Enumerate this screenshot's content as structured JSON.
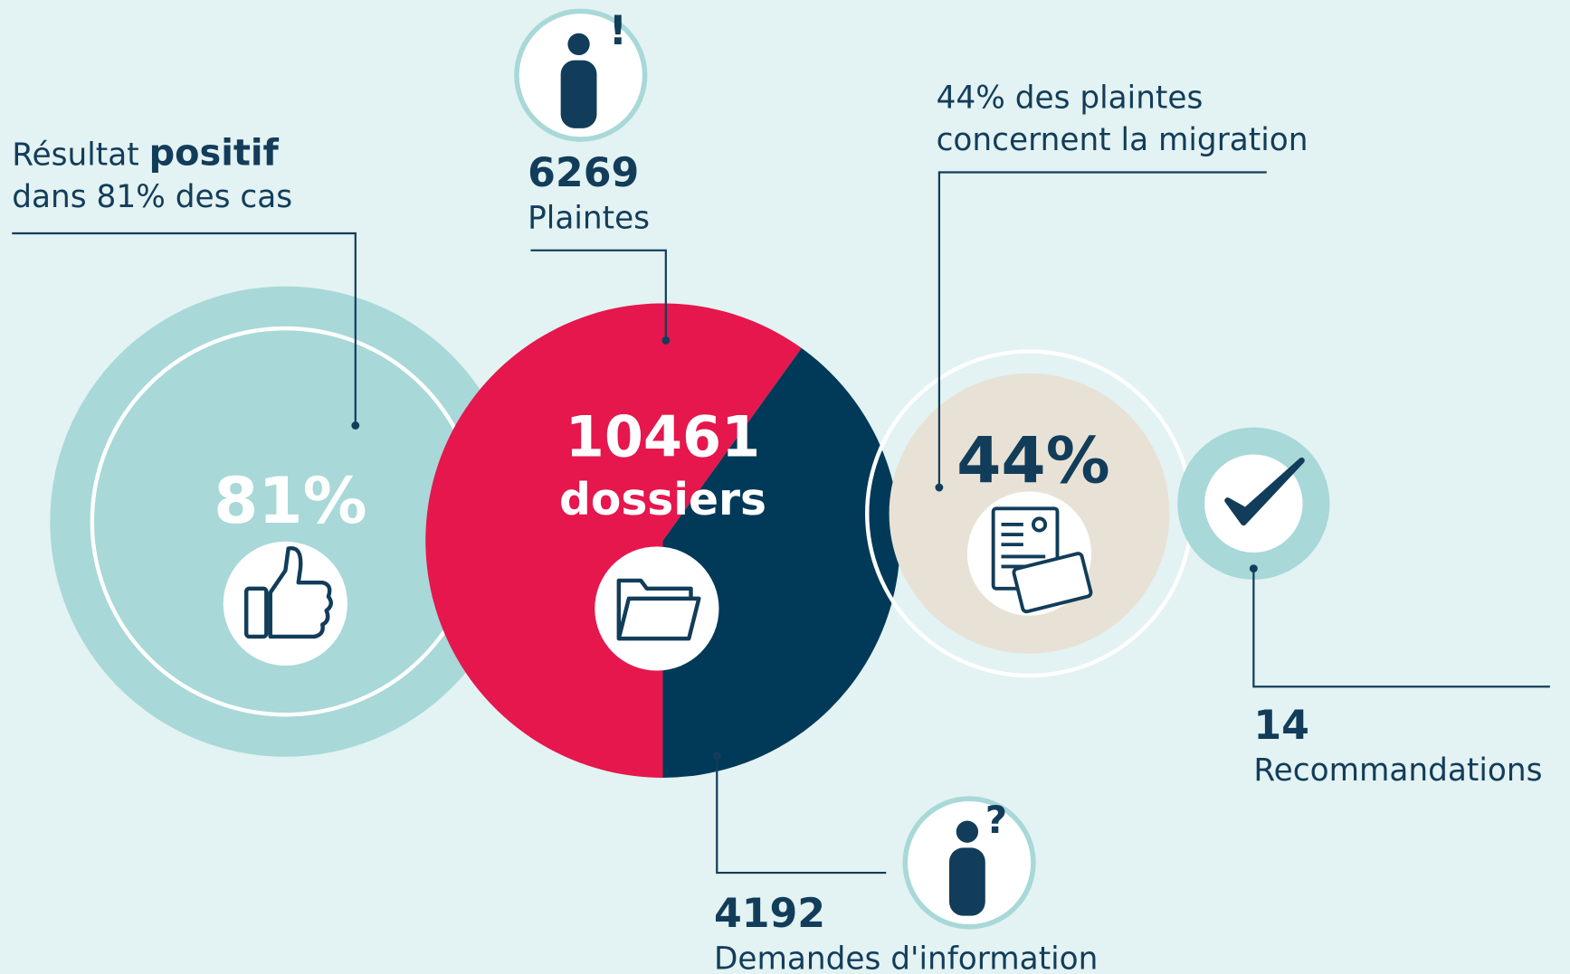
{
  "positive": {
    "label_start": "Résultat",
    "label_bold": "positif",
    "label_end": "dans 81% des cas",
    "percent": "81%"
  },
  "center": {
    "total": 10461,
    "unit": "dossiers"
  },
  "plaintes": {
    "value": 6269,
    "label": "Plaintes"
  },
  "demandes": {
    "value": 4192,
    "label": "Demandes d'information"
  },
  "migration": {
    "caption_line1": "44% des plaintes",
    "caption_line2": "concernent la migration",
    "percent": "44%"
  },
  "recommandations": {
    "value": 14,
    "label": "Recommandations"
  }
}
